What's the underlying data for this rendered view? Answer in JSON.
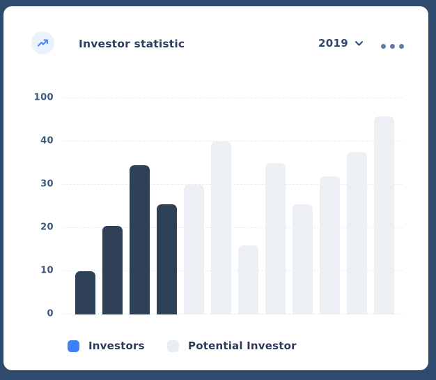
{
  "card": {
    "header": {
      "title": "Investor statistic",
      "year_selector": {
        "value": "2019"
      }
    },
    "legend": [
      {
        "label": "Investors",
        "swatch_color": "#3B82F7"
      },
      {
        "label": "Potential Investor",
        "swatch_color": "#E9EEF3"
      }
    ]
  },
  "colors": {
    "page_background": "#2E4A6C",
    "card_background": "#FFFFFF",
    "investors_bar": "#2E4156",
    "potential_bar": "#ECF0F4",
    "gridline": "#E9EBEE",
    "title_text": "#2B3C5E",
    "axis_label_text": "#3C5578",
    "year_text": "#2D4A6E",
    "kebab_dots": "#5E7CA6",
    "icon_circle_bg": "#EAF2FD",
    "icon_arrow": "#4285F4",
    "legend_text": "#2E3A59"
  },
  "chart_data": {
    "type": "bar",
    "title": "Investor statistic",
    "xlabel": "",
    "ylabel": "",
    "yticks": [
      0,
      10,
      20,
      30,
      40,
      100
    ],
    "ylim": [
      0,
      100
    ],
    "axis_note": "y ticks are evenly spaced on screen (non-linear jump from 40 to 100); no x-axis labels shown",
    "grid": "horizontal dashed",
    "legend_position": "bottom-left",
    "legend": [
      "Investors",
      "Potential Investor"
    ],
    "bars": [
      {
        "series": "Investors",
        "value": 10
      },
      {
        "series": "Investors",
        "value": 20.5
      },
      {
        "series": "Investors",
        "value": 34.5
      },
      {
        "series": "Investors",
        "value": 25.5
      },
      {
        "series": "Potential Investor",
        "value": 30
      },
      {
        "series": "Potential Investor",
        "value": 40
      },
      {
        "series": "Potential Investor",
        "value": 16
      },
      {
        "series": "Potential Investor",
        "value": 35
      },
      {
        "series": "Potential Investor",
        "value": 25.5
      },
      {
        "series": "Potential Investor",
        "value": 32
      },
      {
        "series": "Potential Investor",
        "value": 37.5
      },
      {
        "series": "Potential Investor",
        "value": 75
      }
    ]
  }
}
